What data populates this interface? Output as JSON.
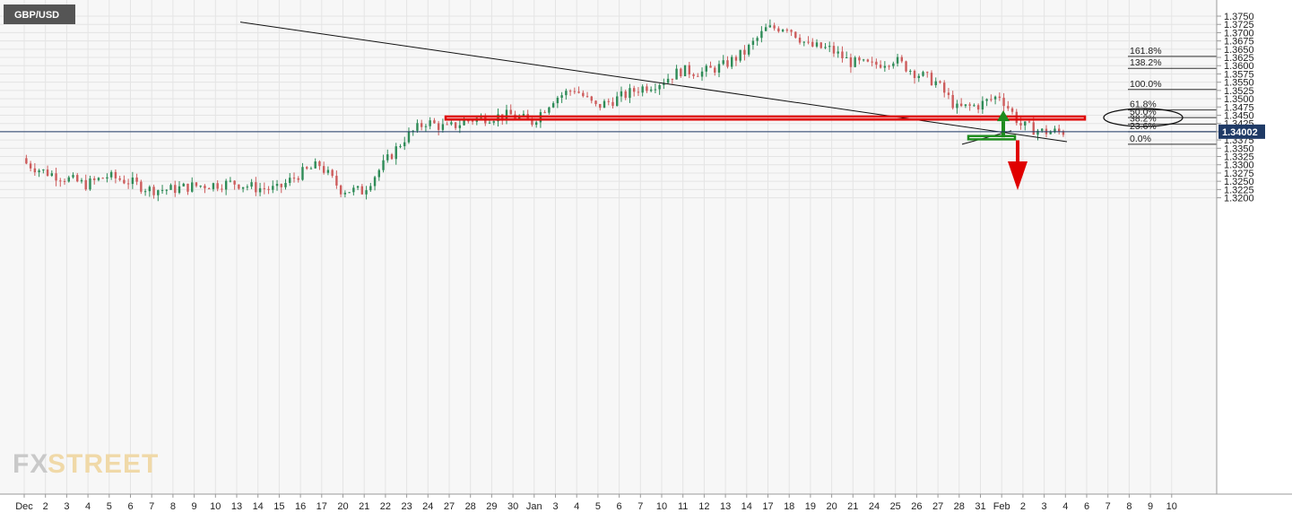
{
  "symbol": "GBP/USD",
  "current_price": {
    "value": 1.34002,
    "label": "1.34002"
  },
  "watermark": {
    "part1": "FX",
    "part2": "STREET"
  },
  "colors": {
    "up": "#2e8b57",
    "down": "#cd5c5c",
    "price_line": "#1f3a66",
    "price_tag": "#1f3a66",
    "zone": "#e00000",
    "arrow_up": "#1e8c1e",
    "arrow_down": "#e00000",
    "trend": "#111111"
  },
  "chart_data": {
    "type": "candlestick",
    "title": "GBP/USD",
    "ylim": [
      1.319,
      1.3765
    ],
    "y_ticks": [
      "1.3200",
      "1.3225",
      "1.3250",
      "1.3275",
      "1.3300",
      "1.3325",
      "1.3350",
      "1.3375",
      "1.3400",
      "1.3425",
      "1.3450",
      "1.3475",
      "1.3500",
      "1.3525",
      "1.3550",
      "1.3575",
      "1.3600",
      "1.3625",
      "1.3650",
      "1.3675",
      "1.3700",
      "1.3725",
      "1.3750"
    ],
    "x_ticks": [
      "Dec",
      "2",
      "3",
      "4",
      "5",
      "6",
      "7",
      "8",
      "9",
      "10",
      "13",
      "14",
      "15",
      "16",
      "17",
      "20",
      "21",
      "22",
      "23",
      "24",
      "27",
      "28",
      "29",
      "30",
      "Jan",
      "3",
      "4",
      "5",
      "6",
      "7",
      "10",
      "11",
      "12",
      "13",
      "14",
      "17",
      "18",
      "19",
      "20",
      "21",
      "24",
      "25",
      "26",
      "27",
      "28",
      "31",
      "Feb",
      "2",
      "3",
      "4",
      "6",
      "7",
      "8",
      "9",
      "10"
    ],
    "daily_closes": [
      1.331,
      1.328,
      1.326,
      1.324,
      1.3265,
      1.325,
      1.3225,
      1.3225,
      1.3235,
      1.324,
      1.3245,
      1.323,
      1.3225,
      1.327,
      1.33,
      1.3225,
      1.322,
      1.33,
      1.338,
      1.343,
      1.341,
      1.3435,
      1.3445,
      1.345,
      1.343,
      1.35,
      1.353,
      1.3475,
      1.35,
      1.353,
      1.355,
      1.3585,
      1.358,
      1.36,
      1.364,
      1.371,
      1.372,
      1.366,
      1.365,
      1.361,
      1.36,
      1.362,
      1.358,
      1.355,
      1.347,
      1.348,
      1.351,
      1.342,
      1.34,
      1.34
    ],
    "fibonacci": [
      {
        "label": "161.8%",
        "price": 1.3628
      },
      {
        "label": "138.2%",
        "price": 1.3592
      },
      {
        "label": "100.0%",
        "price": 1.3528
      },
      {
        "label": "61.8%",
        "price": 1.3466
      },
      {
        "label": "50.0%",
        "price": 1.3443
      },
      {
        "label": "38.2%",
        "price": 1.3423
      },
      {
        "label": "23.6%",
        "price": 1.34
      },
      {
        "label": "0.0%",
        "price": 1.3362
      }
    ],
    "resistance_zone": {
      "low": 1.3437,
      "high": 1.3446
    },
    "support_zone": {
      "low": 1.3377,
      "high": 1.3387
    },
    "trendline": {
      "from": {
        "x": "13",
        "price": 1.3732
      },
      "to": {
        "x": "3",
        "price": 1.337
      }
    },
    "grid": true
  }
}
